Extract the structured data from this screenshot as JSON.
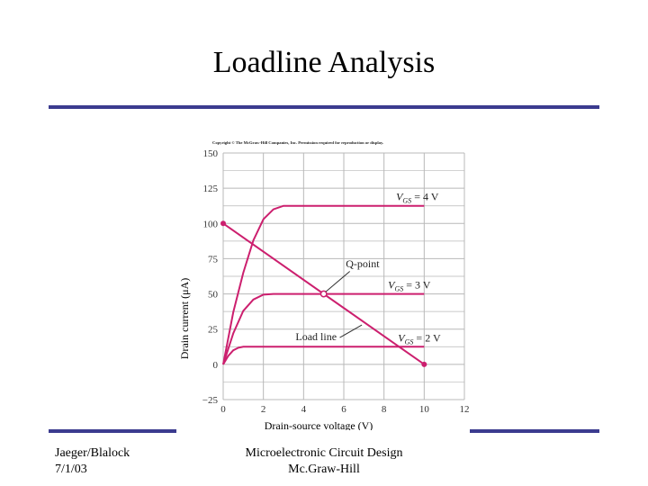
{
  "slide": {
    "title": "Loadline Analysis",
    "footer_left_line1": "Jaeger/Blalock",
    "footer_left_line2": "7/1/03",
    "footer_center_line1": "Microelectronic Circuit Design",
    "footer_center_line2": "Mc.Graw-Hill",
    "rule_color": "#3b3b8f"
  },
  "chart_data": {
    "type": "line",
    "copyright": "Copyright © The McGraw-Hill Companies, Inc. Permission required for reproduction or display.",
    "xlabel": "Drain-source voltage (V)",
    "ylabel": "Drain current (μA)",
    "xlim": [
      0,
      12
    ],
    "ylim": [
      -25,
      150
    ],
    "x_ticks": [
      0,
      2,
      4,
      6,
      8,
      10,
      12
    ],
    "y_ticks": [
      150,
      125,
      100,
      75,
      50,
      25,
      0,
      -25
    ],
    "grid": true,
    "curve_color": "#cc1f6e",
    "series": [
      {
        "name": "VGS = 4 V",
        "label_main": "V",
        "label_sub": "GS",
        "label_rest": " = 4 V",
        "x": [
          0,
          0.5,
          1.0,
          1.5,
          2.0,
          2.5,
          3.0,
          3.5,
          10.0
        ],
        "y": [
          0,
          37,
          65,
          88,
          103,
          110,
          112.5,
          112.5,
          112.5
        ]
      },
      {
        "name": "VGS = 3 V",
        "label_main": "V",
        "label_sub": "GS",
        "label_rest": " = 3 V",
        "x": [
          0,
          0.5,
          1.0,
          1.5,
          2.0,
          2.5,
          3.0,
          10.0
        ],
        "y": [
          0,
          22,
          38,
          46,
          49.5,
          50,
          50,
          50
        ]
      },
      {
        "name": "VGS = 2 V",
        "label_main": "V",
        "label_sub": "GS",
        "label_rest": " = 2 V",
        "x": [
          0,
          0.25,
          0.5,
          0.75,
          1.0,
          1.5,
          10.0
        ],
        "y": [
          0,
          6,
          10,
          11.8,
          12.5,
          12.5,
          12.5
        ]
      }
    ],
    "load_line": {
      "x": [
        0,
        10
      ],
      "y": [
        100,
        0
      ],
      "label": "Load line"
    },
    "q_point": {
      "x": 5,
      "y": 50,
      "label": "Q-point"
    }
  }
}
